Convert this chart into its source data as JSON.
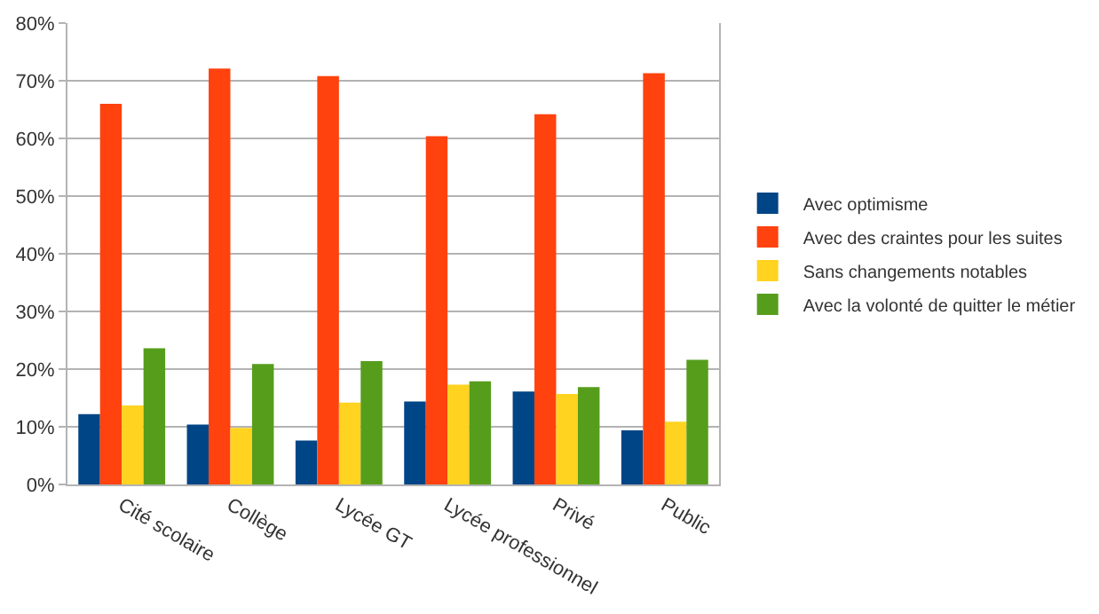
{
  "chart_data": {
    "type": "bar",
    "categories": [
      "Cité scolaire",
      "Collège",
      "Lycée GT",
      "Lycée professionnel",
      "Privé",
      "Public"
    ],
    "series": [
      {
        "name": "Avec optimisme",
        "color": "#004586",
        "values": [
          12.2,
          10.4,
          7.6,
          14.4,
          16.1,
          9.4
        ]
      },
      {
        "name": "Avec des craintes pour les suites",
        "color": "#ff420e",
        "values": [
          66.0,
          72.1,
          70.8,
          60.4,
          64.2,
          71.3
        ]
      },
      {
        "name": "Sans changements notables",
        "color": "#ffd320",
        "values": [
          13.7,
          9.8,
          14.2,
          17.3,
          15.7,
          10.9
        ]
      },
      {
        "name": "Avec la volonté de quitter le métier",
        "color": "#579d1c",
        "values": [
          23.6,
          20.9,
          21.4,
          17.9,
          16.9,
          21.6
        ]
      }
    ],
    "ylim": [
      0,
      80
    ],
    "yticks": [
      {
        "value": 0,
        "label": "0%"
      },
      {
        "value": 10,
        "label": "10%"
      },
      {
        "value": 20,
        "label": "20%"
      },
      {
        "value": 30,
        "label": "30%"
      },
      {
        "value": 40,
        "label": "40%"
      },
      {
        "value": 50,
        "label": "50%"
      },
      {
        "value": 60,
        "label": "60%"
      },
      {
        "value": 70,
        "label": "70%"
      },
      {
        "value": 80,
        "label": "80%"
      }
    ],
    "grid": "y",
    "legend": "right"
  }
}
